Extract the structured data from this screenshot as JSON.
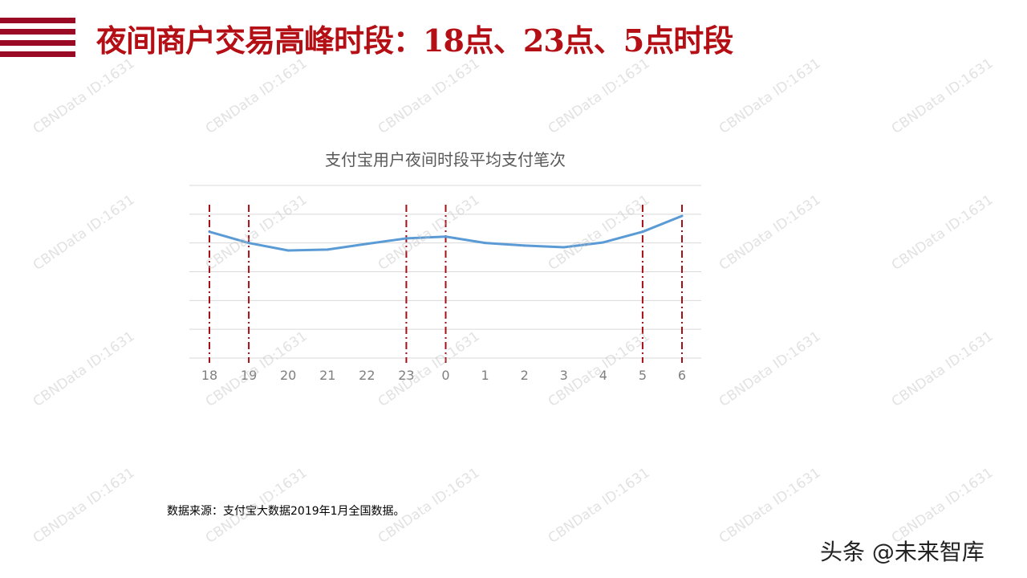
{
  "title": "夜间商户交易高峰时段：18点、23点、5点时段",
  "source": "数据来源：支付宝大数据2019年1月全国数据。",
  "brand": "头条 @未来智库",
  "watermark": "CBNData ID:1631",
  "colors": {
    "accent": "#b50f16",
    "line": "#5b9bd5",
    "marker_line": "#a50f15",
    "grid": "#d9d9d9"
  },
  "chart_data": {
    "type": "line",
    "title": "支付宝用户夜间时段平均支付笔次",
    "categories": [
      "18",
      "19",
      "20",
      "21",
      "22",
      "23",
      "0",
      "1",
      "2",
      "3",
      "4",
      "5",
      "6"
    ],
    "values": [
      4.39,
      4.0,
      3.74,
      3.77,
      3.97,
      4.16,
      4.22,
      4.0,
      3.91,
      3.85,
      4.02,
      4.39,
      4.94
    ],
    "ylim": [
      0,
      6
    ],
    "grid": true,
    "y_tick_labels_shown": false,
    "highlighted_categories": [
      "18",
      "19",
      "23",
      "0",
      "5",
      "6"
    ]
  }
}
